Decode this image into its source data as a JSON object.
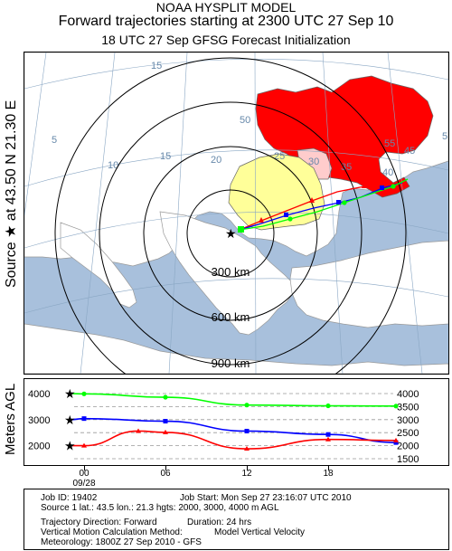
{
  "header": {
    "line1": "NOAA HYSPLIT MODEL",
    "line2": "Forward trajectories starting at 2300 UTC 27 Sep 10",
    "line3": "18 UTC 27 Sep    GFSG  Forecast Initialization"
  },
  "source_label": "Source ★ at    43.50 N    21.30 E",
  "map": {
    "rings": [
      "300 km",
      "600 km",
      "900 km"
    ],
    "graticule_labels": [
      "5",
      "10",
      "15",
      "20",
      "25",
      "30",
      "35",
      "40",
      "45",
      "50",
      "55",
      "15",
      "5"
    ],
    "colors": {
      "sea": "#a8c0dc",
      "land": "#ffffff",
      "highlight_red": "#ff0000",
      "highlight_yellow": "#ffff99",
      "highlight_pink": "#ffcccc",
      "track_red": "#ff0000",
      "track_blue": "#0000ff",
      "track_green": "#00ff00"
    }
  },
  "altitude_panel": {
    "ylabel": "Meters AGL",
    "left_ticks": [
      "4000",
      "3000",
      "2000"
    ],
    "right_ticks": [
      "4000",
      "3500",
      "3000",
      "2500",
      "2000",
      "1500"
    ],
    "x_ticks": [
      "00",
      "06",
      "12",
      "18"
    ],
    "x_date": "09/28"
  },
  "chart_data": {
    "type": "line",
    "xlabel": "",
    "ylabel": "Meters AGL",
    "x_ticks": [
      "00",
      "06",
      "12",
      "18"
    ],
    "ylim": [
      1500,
      4000
    ],
    "series": [
      {
        "color": "#00ff00",
        "start_height": 4000,
        "x_hours": [
          -1,
          0,
          6,
          12,
          18,
          23
        ],
        "values": [
          4000,
          3990,
          3860,
          3560,
          3530,
          3520
        ]
      },
      {
        "color": "#0000ff",
        "start_height": 3000,
        "x_hours": [
          -1,
          0,
          6,
          12,
          18,
          23
        ],
        "values": [
          3000,
          3040,
          2940,
          2560,
          2430,
          2120
        ]
      },
      {
        "color": "#ff0000",
        "start_height": 2000,
        "x_hours": [
          -1,
          0,
          4,
          6,
          12,
          18,
          23
        ],
        "values": [
          2000,
          2000,
          2560,
          2510,
          1880,
          2240,
          2200
        ]
      }
    ]
  },
  "info": {
    "job_id": "Job ID: 19402",
    "job_start": "Job Start: Mon Sep 27 23:16:07 UTC 2010",
    "source": "Source 1 lat.: 43.5   lon.: 21.3   hgts: 2000, 3000, 4000 m AGL",
    "direction": "Trajectory Direction: Forward",
    "duration": "Duration: 24 hrs",
    "vertical_motion": "Vertical Motion Calculation Method:",
    "vertical_model": "Model Vertical Velocity",
    "meteorology": "Meteorology: 1800Z 27 Sep 2010 - GFS"
  }
}
